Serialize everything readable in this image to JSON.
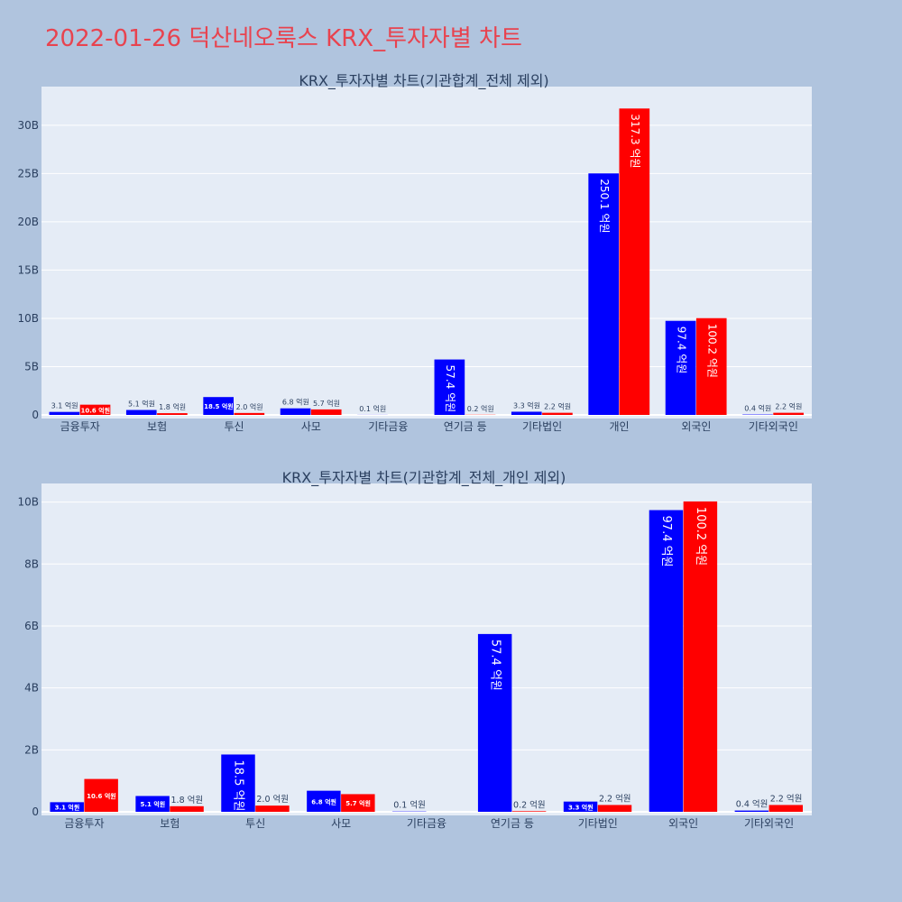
{
  "page_title": "2022-01-26 덕산네오룩스 KRX_투자자별 차트",
  "colors": {
    "buy": "#0000ff",
    "sell": "#ff0000",
    "plot_bg": "#e5ecf6",
    "page_bg": "#b0c4de",
    "title": "#e8434f"
  },
  "chart_data": [
    {
      "type": "bar",
      "title": "KRX_투자자별 차트(기관합계_전체 제외)",
      "xlabel": "",
      "ylabel": "",
      "ylim": [
        0,
        34
      ],
      "yticks": [
        0,
        5,
        10,
        15,
        20,
        25,
        30
      ],
      "ytick_labels": [
        "0",
        "5B",
        "10B",
        "15B",
        "20B",
        "25B",
        "30B"
      ],
      "categories": [
        "금융투자",
        "보험",
        "투신",
        "사모",
        "기타금융",
        "연기금 등",
        "기타법인",
        "개인",
        "외국인",
        "기타외국인"
      ],
      "series": [
        {
          "color": "#0000ff",
          "values": [
            0.31,
            0.51,
            1.85,
            0.68,
            0.01,
            5.74,
            0.33,
            25.01,
            9.74,
            0.04
          ],
          "labels": [
            "3.1 억원",
            "5.1 억원",
            "18.5 억원",
            "6.8 억원",
            "0.1 억원",
            "57.4 억원",
            "3.3 억원",
            "250.1 억원",
            "97.4 억원",
            "0.4 억원"
          ]
        },
        {
          "color": "#ff0000",
          "values": [
            1.06,
            0.18,
            0.2,
            0.57,
            0,
            0.02,
            0.22,
            31.73,
            10.02,
            0.22
          ],
          "labels": [
            "10.6 억원",
            "1.8 억원",
            "2.0 억원",
            "5.7 억원",
            "",
            "0.2 억원",
            "2.2 억원",
            "317.3 억원",
            "100.2 억원",
            "2.2 억원"
          ]
        }
      ]
    },
    {
      "type": "bar",
      "title": "KRX_투자자별 차트(기관합계_전체_개인 제외)",
      "xlabel": "",
      "ylabel": "",
      "ylim": [
        0,
        10.6
      ],
      "yticks": [
        0,
        2,
        4,
        6,
        8,
        10
      ],
      "ytick_labels": [
        "0",
        "2B",
        "4B",
        "6B",
        "8B",
        "10B"
      ],
      "categories": [
        "금융투자",
        "보험",
        "투신",
        "사모",
        "기타금융",
        "연기금 등",
        "기타법인",
        "외국인",
        "기타외국인"
      ],
      "series": [
        {
          "color": "#0000ff",
          "values": [
            0.31,
            0.51,
            1.85,
            0.68,
            0.01,
            5.74,
            0.33,
            9.74,
            0.04
          ],
          "labels": [
            "3.1 억원",
            "5.1 억원",
            "18.5 억원",
            "6.8 억원",
            "0.1 억원",
            "57.4 억원",
            "3.3 억원",
            "97.4 억원",
            "0.4 억원"
          ]
        },
        {
          "color": "#ff0000",
          "values": [
            1.06,
            0.18,
            0.2,
            0.57,
            0,
            0.02,
            0.22,
            10.02,
            0.22
          ],
          "labels": [
            "10.6 억원",
            "1.8 억원",
            "2.0 억원",
            "5.7 억원",
            "",
            "0.2 억원",
            "2.2 억원",
            "100.2 억원",
            "2.2 억원"
          ]
        }
      ]
    }
  ]
}
